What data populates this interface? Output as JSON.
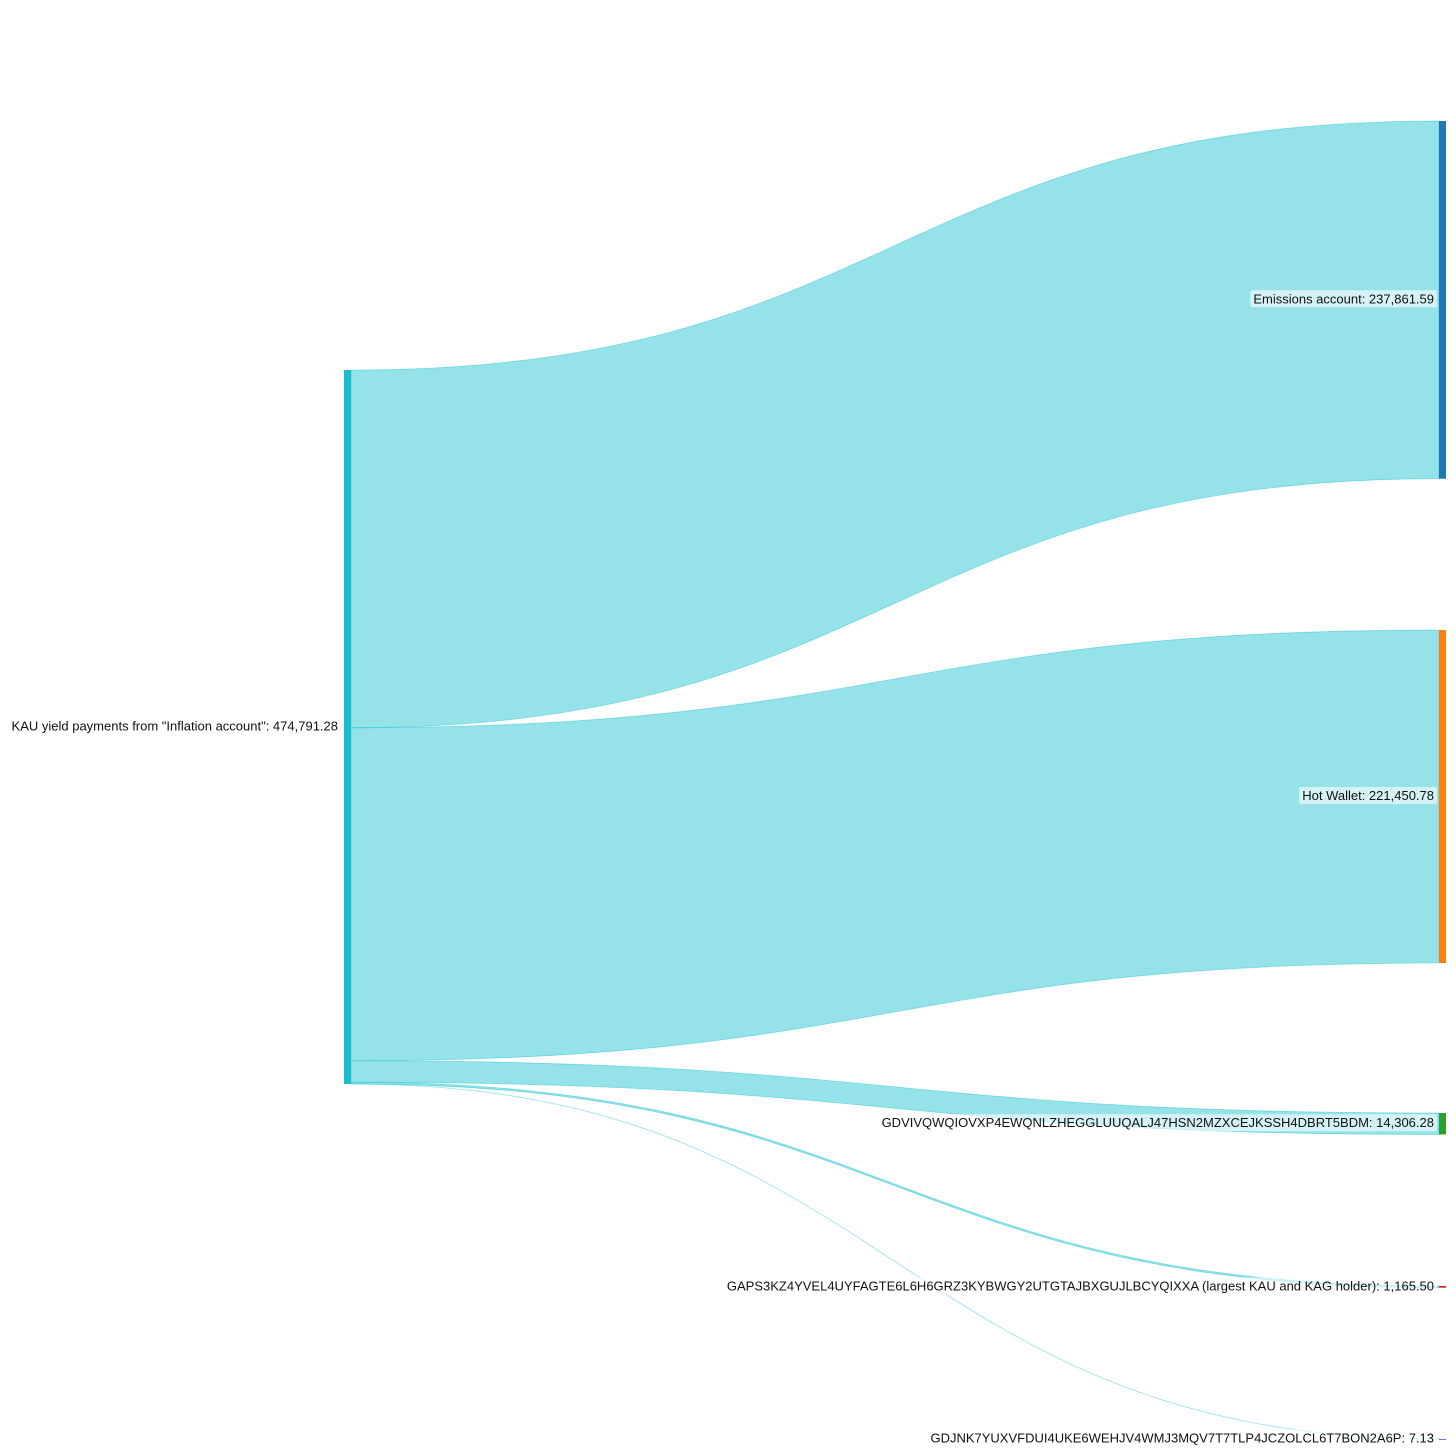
{
  "chart_data": {
    "type": "sankey",
    "source": {
      "label": "KAU yield payments from \"Inflation account\": 474,791.28",
      "value": 474791.28,
      "color": "#17becf"
    },
    "link_color": "rgba(23,190,207,0.45)",
    "targets": [
      {
        "label": "Emissions account: 237,861.59",
        "value": 237861.59,
        "color": "#1f77b4"
      },
      {
        "label": "Hot Wallet: 221,450.78",
        "value": 221450.78,
        "color": "#ff7f0e"
      },
      {
        "label": "GDVIVQWQIOVXP4EWQNLZHEGGLUUQALJ47HSN2MZXCEJKSSH4DBRT5BDM: 14,306.28",
        "value": 14306.28,
        "color": "#2ca02c"
      },
      {
        "label": "GAPS3KZ4YVEL4UYFAGTE6L6H6GRZ3KYBWGY2UTGTAJBXGUJLBCYQIXXA (largest KAU and KAG holder): 1,165.50",
        "value": 1165.5,
        "color": "#d62728"
      },
      {
        "label": "GDJNK7YUXVFDUI4UKE6WEHJV4WMJ3MQV7T7TLP4JCZOLCL6T7BON2A6P: 7.13",
        "value": 7.13,
        "color": "#9467bd"
      }
    ]
  }
}
